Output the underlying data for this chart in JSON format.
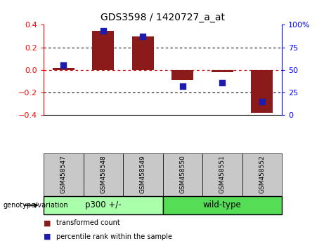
{
  "title": "GDS3598 / 1420727_a_at",
  "samples": [
    "GSM458547",
    "GSM458548",
    "GSM458549",
    "GSM458550",
    "GSM458551",
    "GSM458552"
  ],
  "red_bars": [
    0.02,
    0.345,
    0.295,
    -0.09,
    -0.02,
    -0.38
  ],
  "blue_percentiles": [
    55,
    93,
    87,
    32,
    36,
    15
  ],
  "groups": [
    {
      "label": "p300 +/-",
      "span": [
        0,
        2
      ]
    },
    {
      "label": "wild-type",
      "span": [
        3,
        5
      ]
    }
  ],
  "ylim_left": [
    -0.4,
    0.4
  ],
  "ylim_right": [
    0,
    100
  ],
  "yticks_left": [
    -0.4,
    -0.2,
    0.0,
    0.2,
    0.4
  ],
  "yticks_right": [
    0,
    25,
    50,
    75,
    100
  ],
  "bar_color": "#8B1A1A",
  "dot_color": "#1C1CB0",
  "zero_line_color": "#CC0000",
  "grid_color": "#000000",
  "bg_color": "#FFFFFF",
  "sample_box_color": "#C8C8C8",
  "group_box_p300_color": "#AAFFAA",
  "group_box_wt_color": "#55DD55",
  "bar_width": 0.55,
  "dot_size": 28,
  "legend_red_label": "transformed count",
  "legend_blue_label": "percentile rank within the sample",
  "genotype_label": "genotype/variation"
}
